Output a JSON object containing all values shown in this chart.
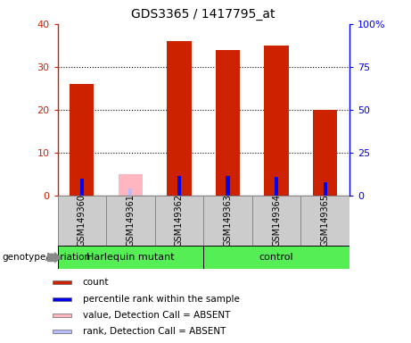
{
  "title": "GDS3365 / 1417795_at",
  "samples": [
    "GSM149360",
    "GSM149361",
    "GSM149362",
    "GSM149363",
    "GSM149364",
    "GSM149365"
  ],
  "count_values": [
    26,
    null,
    36,
    34,
    35,
    20
  ],
  "count_absent_values": [
    null,
    5,
    null,
    null,
    null,
    null
  ],
  "percentile_values": [
    10,
    null,
    11.5,
    11.5,
    11,
    8
  ],
  "percentile_absent_values": [
    null,
    4,
    null,
    null,
    null,
    null
  ],
  "ylim_left": [
    0,
    40
  ],
  "ylim_right": [
    0,
    100
  ],
  "yticks_left": [
    0,
    10,
    20,
    30,
    40
  ],
  "ytick_labels_left": [
    "0",
    "10",
    "20",
    "30",
    "40"
  ],
  "yticks_right": [
    0,
    25,
    50,
    75,
    100
  ],
  "ytick_labels_right": [
    "0",
    "25",
    "50",
    "75",
    "100%"
  ],
  "bar_color_red": "#CC2200",
  "bar_color_pink": "#FFB6C1",
  "bar_color_blue": "#0000EE",
  "bar_color_lightblue": "#BBBBFF",
  "left_axis_color": "#CC2200",
  "right_axis_color": "#0000EE",
  "genotype_label": "genotype/variation",
  "group1_label": "Harlequin mutant",
  "group2_label": "control",
  "group_color": "#55EE55",
  "legend_items": [
    {
      "color": "#CC2200",
      "label": "count"
    },
    {
      "color": "#0000EE",
      "label": "percentile rank within the sample"
    },
    {
      "color": "#FFB6C1",
      "label": "value, Detection Call = ABSENT"
    },
    {
      "color": "#BBBBFF",
      "label": "rank, Detection Call = ABSENT"
    }
  ]
}
